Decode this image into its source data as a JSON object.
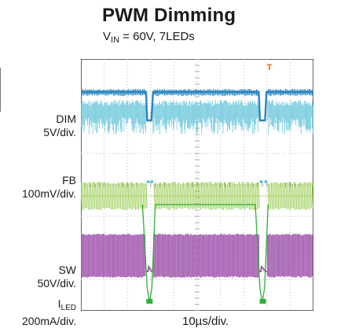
{
  "chart_data": {
    "type": "line",
    "title": "PWM Dimming",
    "subtitle": {
      "main": "V",
      "sub": "IN",
      "rest": " = 60V, 7LEDs"
    },
    "xlabel": "10µs/div.",
    "grid": {
      "divisions_x": 10,
      "divisions_y": 8,
      "on": true
    },
    "x_unit": "µs",
    "xlim": [
      0,
      100
    ],
    "colors": {
      "screen": "#ffffff",
      "grid": "#bdbdbd",
      "dim": "#2a86bf",
      "dim_noise": "#68c6dc",
      "fb": "#8ec83f",
      "sw": "#a45ab0",
      "iled": "#2fad3a",
      "trigger": "#e86a0a"
    },
    "channels": [
      {
        "name": "DIM",
        "scale": "5V/div.",
        "marker": "1",
        "label_name": "DIM",
        "label_sub": ""
      },
      {
        "name": "FB",
        "scale": "100mV/div.",
        "marker": "2",
        "label_name": "FB",
        "label_sub": ""
      },
      {
        "name": "SW",
        "scale": "50V/div.",
        "marker": "3",
        "label_name": "SW",
        "label_sub": ""
      },
      {
        "name": "I",
        "scale": "200mA/div.",
        "marker": "D",
        "label_name": "I",
        "label_sub": "LED"
      }
    ],
    "trigger_marker": "T",
    "series": [
      {
        "name": "DIM",
        "x": [
          0,
          28,
          28.5,
          30.3,
          31,
          76.5,
          77,
          79.2,
          79.8,
          100
        ],
        "y": [
          5,
          5,
          0,
          0,
          5,
          5,
          0,
          0,
          5,
          5
        ],
        "unit": "V"
      },
      {
        "name": "FB",
        "x": [
          0,
          28,
          29,
          30.3,
          31,
          76.5,
          77.5,
          79.2,
          80,
          100
        ],
        "y": [
          100,
          100,
          0,
          0,
          100,
          100,
          0,
          0,
          100,
          100
        ],
        "unit": "mV"
      },
      {
        "name": "SW",
        "x": [
          0,
          28,
          28.3,
          30.3,
          30.6,
          76.5,
          76.8,
          79.2,
          79.5,
          100
        ],
        "y": [
          60,
          60,
          0,
          0,
          60,
          60,
          0,
          0,
          60,
          60
        ],
        "unit": "V",
        "note_switching": true
      },
      {
        "name": "ILED",
        "x": [
          0,
          26.5,
          28.5,
          29.5,
          30.5,
          32,
          75,
          77,
          78,
          79,
          80.5,
          100
        ],
        "y": [
          700,
          700,
          100,
          0,
          100,
          700,
          700,
          100,
          0,
          100,
          700,
          700
        ],
        "unit": "mA"
      }
    ]
  }
}
